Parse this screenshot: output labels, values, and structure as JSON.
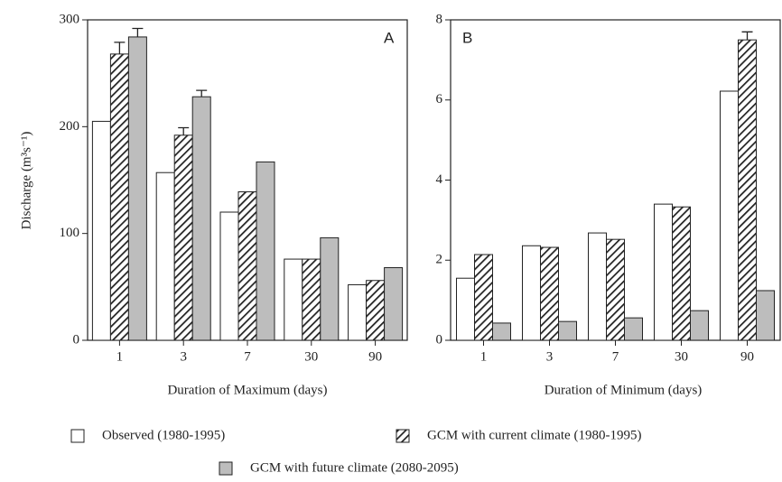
{
  "chart_data": [
    {
      "type": "bar",
      "panel_label": "A",
      "ylabel": "Discharge (m³s⁻¹)",
      "xlabel": "Duration of Maximum (days)",
      "categories": [
        "1",
        "3",
        "7",
        "30",
        "90"
      ],
      "ylim": [
        0,
        300
      ],
      "yticks": [
        0,
        100,
        200,
        300
      ],
      "series": [
        {
          "name": "Observed (1980-1995)",
          "color": "#ffffff",
          "pattern": "solid",
          "values": [
            205,
            157,
            120,
            76,
            52
          ]
        },
        {
          "name": "GCM with current climate (1980-1995)",
          "color": "#222222",
          "pattern": "hatch",
          "values": [
            268,
            192,
            139,
            76,
            56
          ],
          "errors": [
            11,
            7,
            null,
            null,
            null
          ]
        },
        {
          "name": "GCM with future climate (2080-2095)",
          "color": "#bdbdbd",
          "pattern": "solid",
          "values": [
            284,
            228,
            167,
            96,
            68
          ],
          "errors": [
            8,
            6,
            null,
            null,
            null
          ]
        }
      ]
    },
    {
      "type": "bar",
      "panel_label": "B",
      "xlabel": "Duration of Minimum (days)",
      "categories": [
        "1",
        "3",
        "7",
        "30",
        "90"
      ],
      "ylim": [
        0,
        8
      ],
      "yticks": [
        0,
        2,
        4,
        6,
        8
      ],
      "series": [
        {
          "color": "#ffffff",
          "pattern": "solid",
          "values": [
            1.55,
            2.36,
            2.68,
            3.4,
            6.22
          ]
        },
        {
          "color": "#222222",
          "pattern": "hatch",
          "values": [
            2.14,
            2.32,
            2.52,
            3.33,
            7.5
          ],
          "errors": [
            null,
            null,
            null,
            null,
            0.2
          ]
        },
        {
          "color": "#bdbdbd",
          "pattern": "solid",
          "values": [
            0.43,
            0.47,
            0.56,
            0.74,
            1.24
          ]
        }
      ]
    }
  ]
}
